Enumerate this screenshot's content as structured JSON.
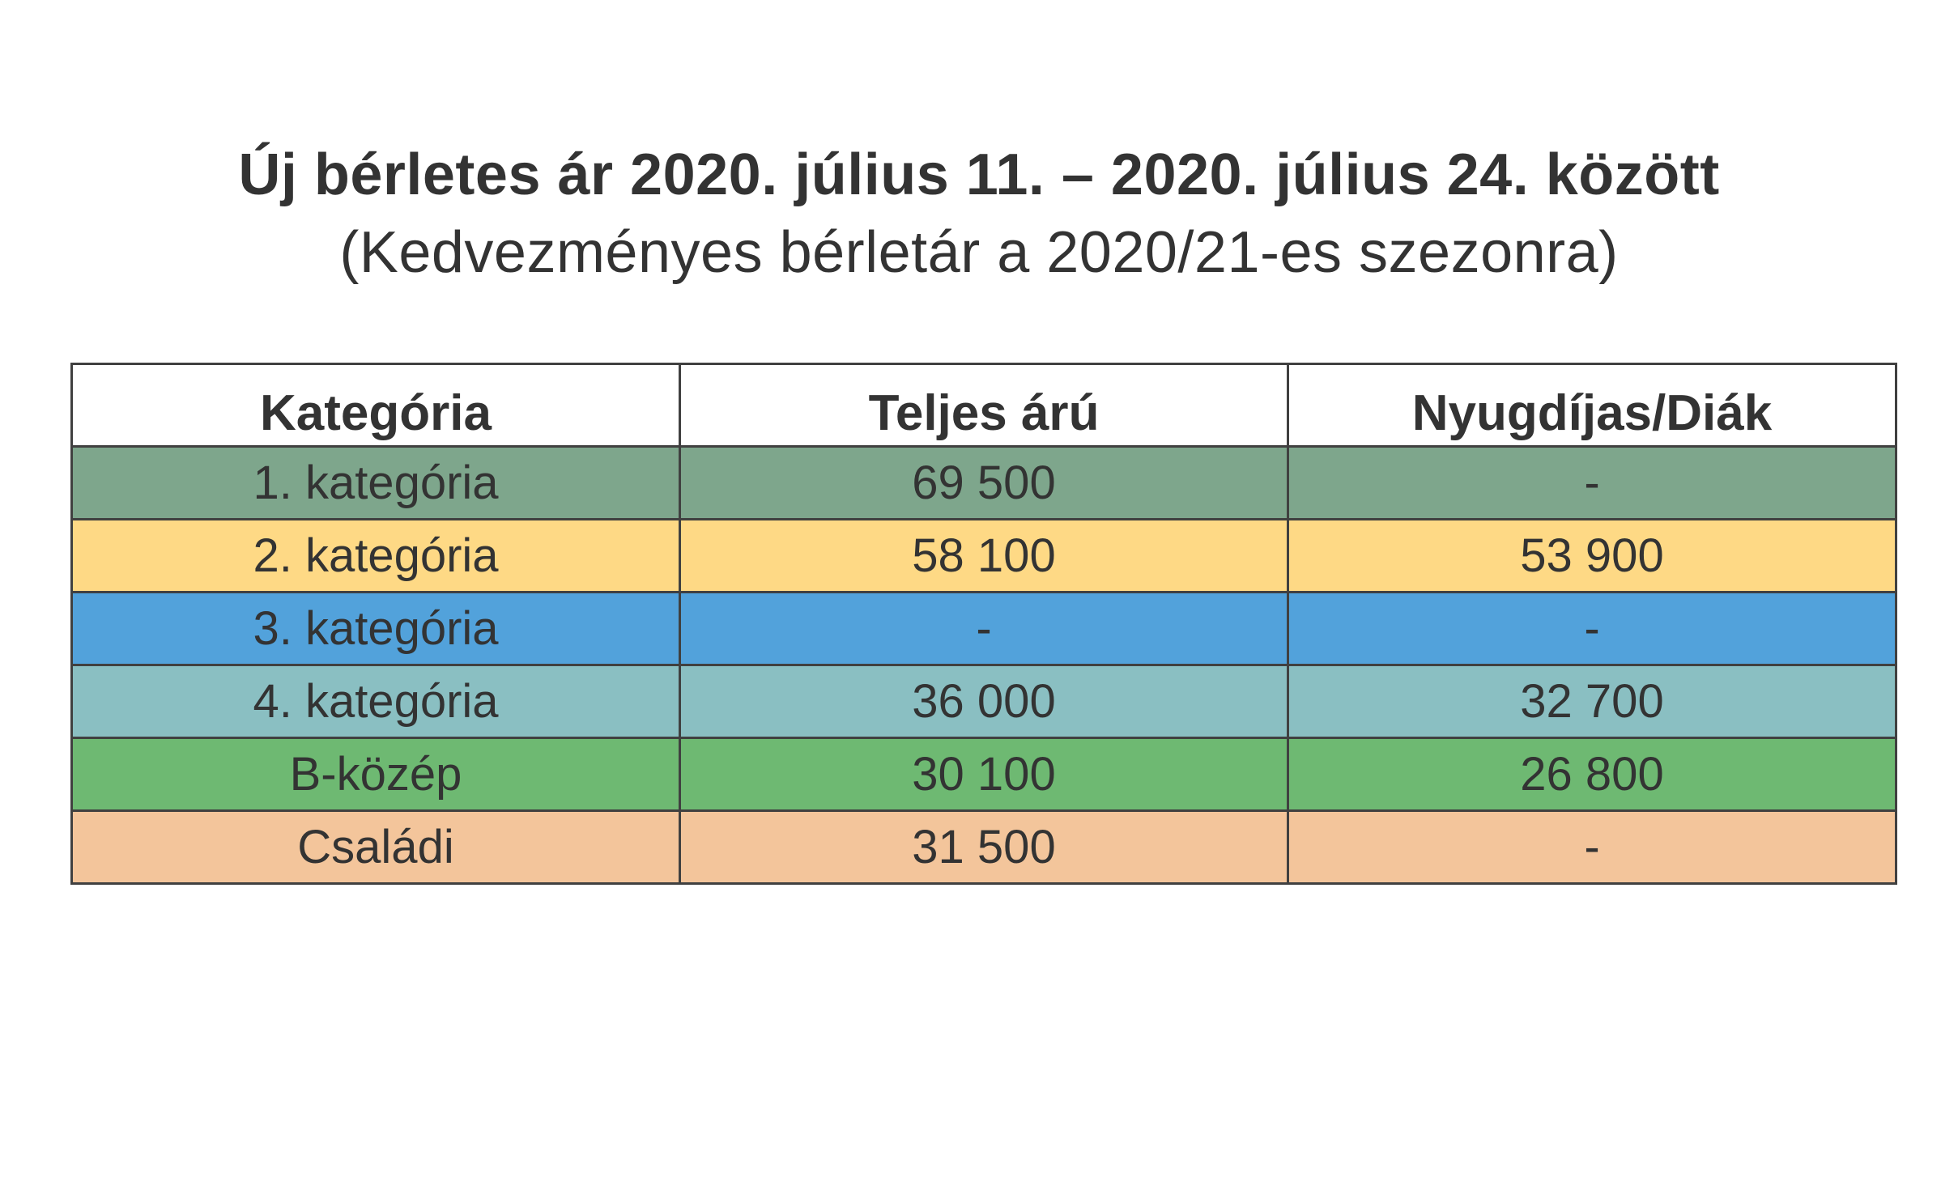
{
  "header": {
    "title": "Új bérletes ár 2020. július 11. – 2020. július 24. között",
    "subtitle": "(Kedvezményes bérletár a 2020/21-es szezonra)"
  },
  "table": {
    "columns": [
      "Kategória",
      "Teljes árú",
      "Nyugdíjas/Diák"
    ],
    "rows": [
      {
        "category": "1. kategória",
        "full_price": "69 500",
        "reduced_price": "-",
        "color": "#7ea68c"
      },
      {
        "category": "2. kategória",
        "full_price": "58 100",
        "reduced_price": "53 900",
        "color": "#fed985"
      },
      {
        "category": "3. kategória",
        "full_price": "-",
        "reduced_price": "-",
        "color": "#52a2db"
      },
      {
        "category": "4. kategória",
        "full_price": "36 000",
        "reduced_price": "32 700",
        "color": "#8abfc2"
      },
      {
        "category": "B-közép",
        "full_price": "30 100",
        "reduced_price": "26 800",
        "color": "#6eb972"
      },
      {
        "category": "Családi",
        "full_price": "31 500",
        "reduced_price": "-",
        "color": "#f3c59b"
      }
    ]
  }
}
